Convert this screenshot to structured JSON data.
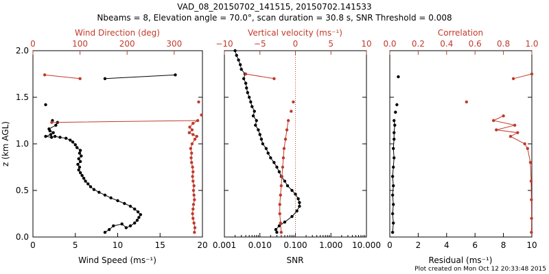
{
  "colors": {
    "black": "#000000",
    "red": "#c0392b"
  },
  "title": {
    "line1": "VAD_08_20150702_141515, 20150702.141533",
    "line2": "Nbeams = 8, Elevation angle = 70.0°, scan duration = 30.8 s, SNR Threshold = 0.008"
  },
  "footer": "Plot created on Mon Oct 12 20:33:48 2015",
  "chart_data": [
    {
      "type": "line",
      "panel": "wind",
      "ylabel": "z (km AGL)",
      "ylim": [
        0,
        2
      ],
      "yticks": [
        "0.0",
        "0.5",
        "1.0",
        "1.5",
        "2.0"
      ],
      "bottom_axis": {
        "label": "Wind Speed (ms⁻¹)",
        "range": [
          0,
          20
        ],
        "ticks": [
          "0",
          "5",
          "10",
          "15",
          "20"
        ]
      },
      "top_axis": {
        "label": "Wind Direction (deg)",
        "range": [
          0,
          360
        ],
        "ticks": [
          "0",
          "100",
          "200",
          "300"
        ]
      },
      "series": [
        {
          "name": "Wind Speed",
          "color": "black",
          "axis": "bottom",
          "segments": [
            [
              [
                8.5,
                0.05
              ],
              [
                9,
                0.08
              ],
              [
                9.5,
                0.12
              ],
              [
                10.5,
                0.14
              ],
              [
                11,
                0.1
              ],
              [
                11.5,
                0.12
              ],
              [
                12,
                0.15
              ],
              [
                12.3,
                0.18
              ],
              [
                12.5,
                0.21
              ],
              [
                12.7,
                0.24
              ],
              [
                12.4,
                0.27
              ],
              [
                12,
                0.3
              ],
              [
                11.5,
                0.33
              ],
              [
                10.8,
                0.36
              ],
              [
                10,
                0.39
              ],
              [
                9.2,
                0.42
              ],
              [
                8.5,
                0.45
              ],
              [
                7.8,
                0.48
              ],
              [
                7.2,
                0.51
              ],
              [
                6.8,
                0.54
              ],
              [
                6.5,
                0.57
              ],
              [
                6.2,
                0.6
              ],
              [
                6,
                0.63
              ],
              [
                5.8,
                0.66
              ],
              [
                5.6,
                0.69
              ],
              [
                5.4,
                0.72
              ],
              [
                5.5,
                0.75
              ],
              [
                5.3,
                0.78
              ],
              [
                5.6,
                0.81
              ],
              [
                5.4,
                0.84
              ],
              [
                5.7,
                0.87
              ],
              [
                5.5,
                0.9
              ],
              [
                5.6,
                0.93
              ],
              [
                5.2,
                0.96
              ],
              [
                5,
                0.99
              ],
              [
                4.7,
                1.02
              ],
              [
                4.4,
                1.04
              ],
              [
                3.9,
                1.06
              ],
              [
                3.2,
                1.07
              ],
              [
                2.6,
                1.08
              ],
              [
                2.2,
                1.07
              ],
              [
                1.5,
                1.08
              ],
              [
                2.1,
                1.1
              ],
              [
                2.4,
                1.12
              ],
              [
                2,
                1.14
              ],
              [
                1.9,
                1.16
              ],
              [
                2.7,
                1.2
              ],
              [
                2.9,
                1.23
              ]
            ],
            [
              [
                8.5,
                1.7
              ],
              [
                16.8,
                1.74
              ]
            ]
          ],
          "points": [
            [
              2.3,
              1.25
            ],
            [
              1.5,
              1.42
            ]
          ]
        },
        {
          "name": "Wind Direction",
          "color": "red",
          "axis": "top",
          "segments": [
            [
              [
                343,
                0.05
              ],
              [
                344,
                0.1
              ],
              [
                342,
                0.15
              ],
              [
                340,
                0.2
              ],
              [
                339,
                0.25
              ],
              [
                340,
                0.3
              ],
              [
                341,
                0.35
              ],
              [
                343,
                0.4
              ],
              [
                342,
                0.45
              ],
              [
                341,
                0.5
              ],
              [
                342,
                0.55
              ],
              [
                340,
                0.6
              ],
              [
                339,
                0.65
              ],
              [
                340,
                0.7
              ],
              [
                339,
                0.75
              ],
              [
                337,
                0.8
              ],
              [
                336,
                0.85
              ],
              [
                337,
                0.9
              ],
              [
                335,
                0.95
              ],
              [
                338,
                1.0
              ],
              [
                344,
                1.05
              ],
              [
                348,
                1.08
              ],
              [
                340,
                1.1
              ],
              [
                332,
                1.12
              ],
              [
                338,
                1.15
              ],
              [
                333,
                1.18
              ],
              [
                340,
                1.22
              ],
              [
                350,
                1.25
              ],
              [
                40,
                1.23
              ]
            ],
            [
              [
                25,
                1.74
              ],
              [
                100,
                1.7
              ]
            ]
          ],
          "points": [
            [
              352,
              1.45
            ],
            [
              358,
              1.31
            ]
          ]
        }
      ]
    },
    {
      "type": "line",
      "panel": "snr",
      "ylim": [
        0,
        2
      ],
      "bottom_axis": {
        "label": "SNR",
        "scale": "log",
        "range": [
          0.001,
          10
        ],
        "ticks": [
          "0.001",
          "0.010",
          "0.100",
          "1.000",
          "10.000"
        ]
      },
      "top_axis": {
        "label": "Vertical velocity (ms⁻¹)",
        "range": [
          -10,
          10
        ],
        "ticks": [
          "−10",
          "−5",
          "0",
          "5",
          "10"
        ]
      },
      "reference_line": {
        "axis": "top",
        "value": 0,
        "style": "dotted"
      },
      "series": [
        {
          "name": "SNR",
          "color": "black",
          "axis": "bottom",
          "segments": [
            [
              [
                0.03,
                0.05
              ],
              [
                0.028,
                0.08
              ],
              [
                0.035,
                0.12
              ],
              [
                0.05,
                0.16
              ],
              [
                0.08,
                0.22
              ],
              [
                0.11,
                0.28
              ],
              [
                0.13,
                0.33
              ],
              [
                0.13,
                0.37
              ],
              [
                0.12,
                0.41
              ],
              [
                0.1,
                0.46
              ],
              [
                0.08,
                0.5
              ],
              [
                0.06,
                0.55
              ],
              [
                0.05,
                0.6
              ],
              [
                0.04,
                0.65
              ],
              [
                0.035,
                0.7
              ],
              [
                0.03,
                0.75
              ],
              [
                0.025,
                0.8
              ],
              [
                0.02,
                0.85
              ],
              [
                0.017,
                0.9
              ],
              [
                0.015,
                0.95
              ],
              [
                0.012,
                1.0
              ],
              [
                0.011,
                1.05
              ],
              [
                0.01,
                1.1
              ],
              [
                0.009,
                1.15
              ],
              [
                0.0075,
                1.2
              ],
              [
                0.008,
                1.25
              ],
              [
                0.0065,
                1.3
              ],
              [
                0.007,
                1.35
              ],
              [
                0.006,
                1.4
              ],
              [
                0.0055,
                1.45
              ],
              [
                0.005,
                1.5
              ],
              [
                0.0045,
                1.55
              ],
              [
                0.0042,
                1.6
              ],
              [
                0.004,
                1.65
              ],
              [
                0.0035,
                1.7
              ],
              [
                0.0038,
                1.75
              ],
              [
                0.003,
                1.8
              ],
              [
                0.0028,
                1.85
              ],
              [
                0.0025,
                1.9
              ],
              [
                0.0022,
                1.95
              ],
              [
                0.002,
                2.0
              ]
            ]
          ]
        },
        {
          "name": "Vertical velocity",
          "color": "red",
          "axis": "top",
          "segments": [
            [
              [
                -2,
                0.05
              ],
              [
                -2.1,
                0.15
              ],
              [
                -2.2,
                0.25
              ],
              [
                -2.2,
                0.35
              ],
              [
                -2.1,
                0.45
              ],
              [
                -2.0,
                0.55
              ],
              [
                -1.9,
                0.65
              ],
              [
                -1.8,
                0.75
              ],
              [
                -1.7,
                0.85
              ],
              [
                -1.6,
                0.95
              ],
              [
                -1.4,
                1.05
              ],
              [
                -1.2,
                1.15
              ],
              [
                -1.0,
                1.25
              ]
            ],
            [
              [
                -7,
                1.75
              ],
              [
                -3,
                1.7
              ]
            ]
          ],
          "points": [
            [
              -0.3,
              1.45
            ],
            [
              -0.6,
              1.35
            ]
          ]
        }
      ]
    },
    {
      "type": "line",
      "panel": "residual",
      "ylim": [
        0,
        2
      ],
      "bottom_axis": {
        "label": "Residual (ms⁻¹)",
        "range": [
          0,
          10
        ],
        "ticks": [
          "0",
          "2",
          "4",
          "6",
          "8",
          "10"
        ]
      },
      "top_axis": {
        "label": "Correlation",
        "range": [
          0,
          1
        ],
        "ticks": [
          "0.0",
          "0.2",
          "0.4",
          "0.6",
          "0.8",
          "1.0"
        ]
      },
      "series": [
        {
          "name": "Residual",
          "color": "black",
          "axis": "bottom",
          "segments": [
            [
              [
                0.2,
                0.05
              ],
              [
                0.25,
                0.15
              ],
              [
                0.2,
                0.25
              ],
              [
                0.25,
                0.35
              ],
              [
                0.2,
                0.45
              ],
              [
                0.25,
                0.55
              ],
              [
                0.2,
                0.65
              ],
              [
                0.25,
                0.75
              ],
              [
                0.3,
                0.85
              ],
              [
                0.25,
                0.95
              ],
              [
                0.3,
                1.05
              ],
              [
                0.3,
                1.12
              ],
              [
                0.35,
                1.2
              ],
              [
                0.3,
                1.25
              ]
            ]
          ],
          "points": [
            [
              0.4,
              1.34
            ],
            [
              0.6,
              1.72
            ],
            [
              0.5,
              1.42
            ]
          ]
        },
        {
          "name": "Correlation",
          "color": "red",
          "axis": "top",
          "segments": [
            [
              [
                0.997,
                0.05
              ],
              [
                0.998,
                0.2
              ],
              [
                0.997,
                0.4
              ],
              [
                0.995,
                0.6
              ],
              [
                0.99,
                0.8
              ],
              [
                0.97,
                0.95
              ],
              [
                0.95,
                1.0
              ],
              [
                0.85,
                1.08
              ],
              [
                0.9,
                1.12
              ],
              [
                0.75,
                1.15
              ],
              [
                0.88,
                1.2
              ],
              [
                0.73,
                1.25
              ],
              [
                0.8,
                1.3
              ]
            ],
            [
              [
                0.87,
                1.7
              ],
              [
                1.0,
                1.75
              ]
            ]
          ],
          "points": [
            [
              0.54,
              1.45
            ]
          ]
        }
      ]
    }
  ]
}
